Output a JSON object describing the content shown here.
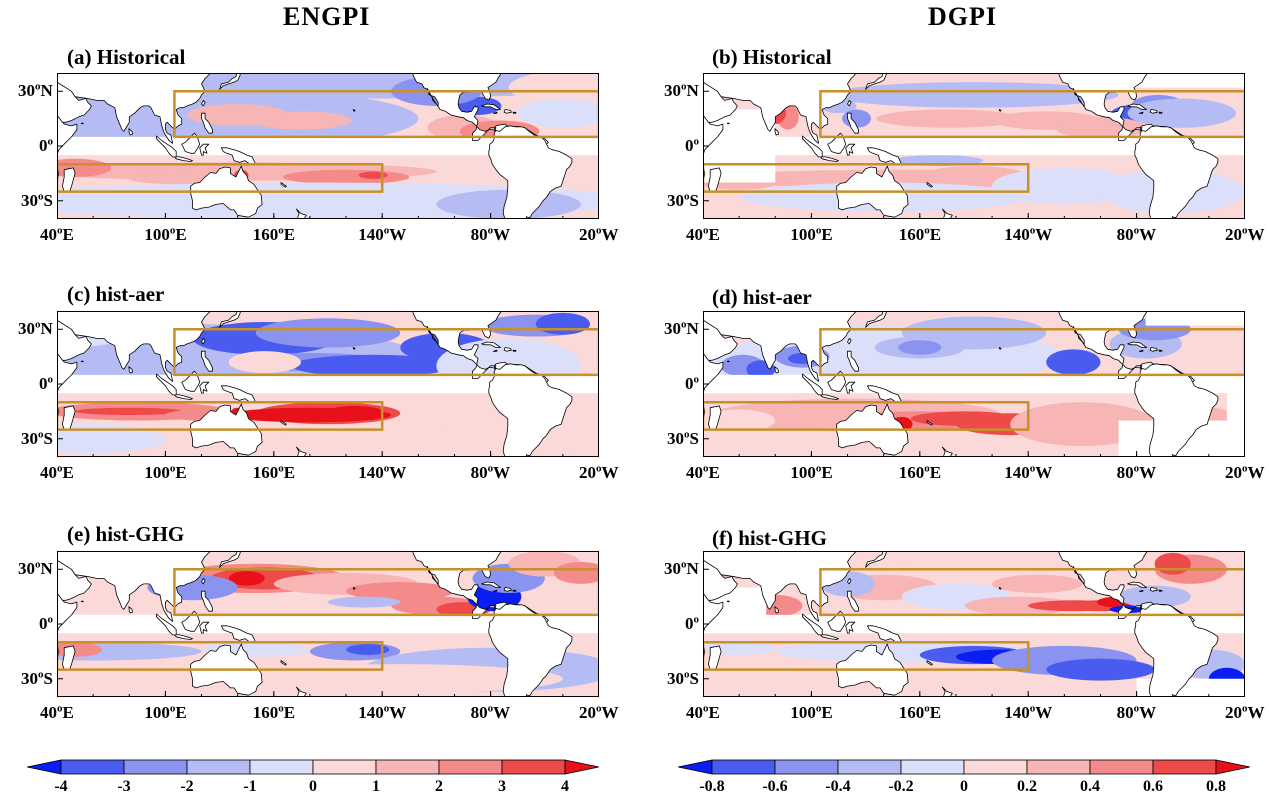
{
  "columns": [
    {
      "title": "ENGPI",
      "colorbar": {
        "ticks": [
          "-4",
          "-3",
          "-2",
          "-1",
          "0",
          "1",
          "2",
          "3",
          "4"
        ]
      }
    },
    {
      "title": "DGPI",
      "colorbar": {
        "ticks": [
          "-0.8",
          "-0.6",
          "-0.4",
          "-0.2",
          "0",
          "0.2",
          "0.4",
          "0.6",
          "0.8"
        ]
      }
    }
  ],
  "panels": [
    {
      "id": "a",
      "label": "(a) Historical",
      "column": 0,
      "row": 0
    },
    {
      "id": "b",
      "label": "(b) Historical",
      "column": 1,
      "row": 0
    },
    {
      "id": "c",
      "label": "(c) hist-aer",
      "column": 0,
      "row": 1
    },
    {
      "id": "d",
      "label": "(d) hist-aer",
      "column": 1,
      "row": 1
    },
    {
      "id": "e",
      "label": "(e) hist-GHG",
      "column": 0,
      "row": 2
    },
    {
      "id": "f",
      "label": "(f) hist-GHG",
      "column": 1,
      "row": 2
    }
  ],
  "axes": {
    "lon_ticks": [
      {
        "deg": "40",
        "dir": "E"
      },
      {
        "deg": "100",
        "dir": "E"
      },
      {
        "deg": "160",
        "dir": "E"
      },
      {
        "deg": "140",
        "dir": "W"
      },
      {
        "deg": "80",
        "dir": "W"
      },
      {
        "deg": "20",
        "dir": "W"
      }
    ],
    "lat_ticks": [
      {
        "deg": "30",
        "dir": "N"
      },
      {
        "deg": "0",
        "dir": ""
      },
      {
        "deg": "30",
        "dir": "S"
      }
    ],
    "lon_range": [
      40,
      340
    ],
    "lat_range": [
      -40,
      40
    ]
  },
  "regions": {
    "north_box": {
      "lon": [
        105,
        340
      ],
      "lat": [
        5,
        30
      ]
    },
    "south_box": {
      "lon": [
        40,
        220
      ],
      "lat": [
        -25,
        -10
      ]
    }
  },
  "colors": {
    "box": "#c8902a",
    "land": "#ffffff",
    "coast": "#000000",
    "palette": [
      "#0b1ef2",
      "#4a5cf0",
      "#8a94f0",
      "#b5bbf3",
      "#dcdff9",
      "#fbd9d9",
      "#f7b5b5",
      "#f58a8a",
      "#ee4a4a",
      "#e8111a"
    ]
  }
}
